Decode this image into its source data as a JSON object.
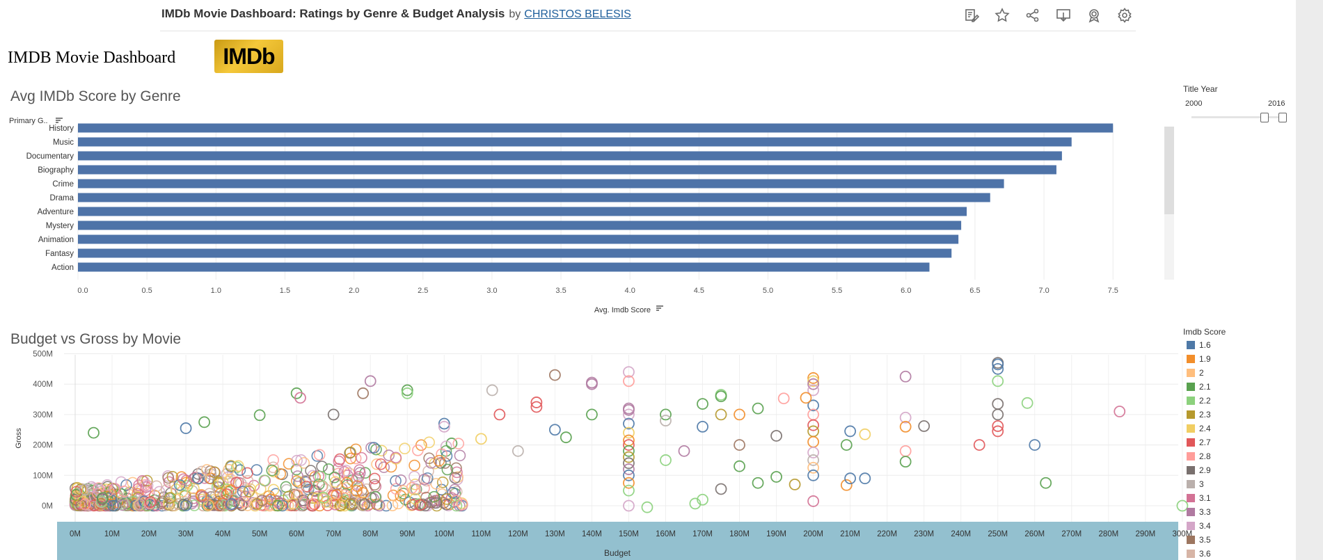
{
  "header": {
    "title": "IMDb Movie Dashboard: Ratings by Genre & Budget Analysis",
    "by": "by",
    "author": "CHRISTOS BELESIS",
    "toolbar_icons": [
      "edit-icon",
      "star-icon",
      "share-icon",
      "download-icon",
      "badge-icon",
      "gear-icon"
    ]
  },
  "dashboard": {
    "heading": "IMDB Movie Dashboard",
    "logo_text": "IMDb"
  },
  "filter": {
    "title": "Title Year",
    "min": "2000",
    "max": "2016"
  },
  "colors": {
    "bar": "#4e73a8",
    "axis_band": "#93c0cf",
    "logo": "#e2b62c"
  },
  "legend": {
    "title": "Imdb Score",
    "items": [
      {
        "label": "1.6",
        "color": "#4e79a7"
      },
      {
        "label": "1.9",
        "color": "#f28e2b"
      },
      {
        "label": "2",
        "color": "#ffbe7d"
      },
      {
        "label": "2.1",
        "color": "#59a14f"
      },
      {
        "label": "2.2",
        "color": "#8cd17d"
      },
      {
        "label": "2.3",
        "color": "#b6992d"
      },
      {
        "label": "2.4",
        "color": "#f1ce63"
      },
      {
        "label": "2.7",
        "color": "#e15759"
      },
      {
        "label": "2.8",
        "color": "#ff9d9a"
      },
      {
        "label": "2.9",
        "color": "#79706e"
      },
      {
        "label": "3",
        "color": "#bab0ac"
      },
      {
        "label": "3.1",
        "color": "#d37295"
      },
      {
        "label": "3.3",
        "color": "#b07aa1"
      },
      {
        "label": "3.4",
        "color": "#d4a6c8"
      },
      {
        "label": "3.5",
        "color": "#9d7660"
      },
      {
        "label": "3.6",
        "color": "#d7b5a6"
      }
    ]
  },
  "chart_data": [
    {
      "type": "bar",
      "orientation": "horizontal",
      "title": "Avg IMDb Score by Genre",
      "ylabel": "Primary G..",
      "xlabel": "Avg. Imdb Score",
      "categories": [
        "History",
        "Music",
        "Documentary",
        "Biography",
        "Crime",
        "Drama",
        "Adventure",
        "Mystery",
        "Animation",
        "Fantasy",
        "Action"
      ],
      "values": [
        7.5,
        7.2,
        7.13,
        7.09,
        6.71,
        6.61,
        6.44,
        6.4,
        6.38,
        6.33,
        6.17
      ],
      "xlim": [
        0,
        7.8
      ],
      "xticks": [
        "0.0",
        "0.5",
        "1.0",
        "1.5",
        "2.0",
        "2.5",
        "3.0",
        "3.5",
        "4.0",
        "4.5",
        "5.0",
        "5.5",
        "6.0",
        "6.5",
        "7.0",
        "7.5"
      ],
      "grid": true
    },
    {
      "type": "scatter",
      "marker": "open-circle",
      "title": "Budget vs Gross by Movie",
      "xlabel": "Budget",
      "ylabel": "Gross",
      "xlim": [
        0,
        300
      ],
      "ylim": [
        -30,
        520
      ],
      "units": "millions USD",
      "xticks": [
        "0M",
        "10M",
        "20M",
        "30M",
        "40M",
        "50M",
        "60M",
        "70M",
        "80M",
        "90M",
        "100M",
        "110M",
        "120M",
        "130M",
        "140M",
        "150M",
        "160M",
        "170M",
        "180M",
        "190M",
        "200M",
        "210M",
        "220M",
        "230M",
        "240M",
        "250M",
        "260M",
        "270M",
        "280M",
        "290M",
        "300M"
      ],
      "yticks": [
        "0M",
        "100M",
        "200M",
        "300M",
        "400M",
        "500M"
      ],
      "grid": true,
      "points": [
        [
          250,
          470,
          9
        ],
        [
          250,
          465,
          0
        ],
        [
          250,
          450,
          0
        ],
        [
          250,
          410,
          4
        ],
        [
          250,
          335,
          9
        ],
        [
          250,
          300,
          9
        ],
        [
          250,
          262,
          7
        ],
        [
          250,
          245,
          7
        ],
        [
          200,
          420,
          1
        ],
        [
          200,
          410,
          6
        ],
        [
          200,
          400,
          12
        ],
        [
          200,
          380,
          13
        ],
        [
          200,
          330,
          0
        ],
        [
          200,
          300,
          8
        ],
        [
          200,
          265,
          7
        ],
        [
          200,
          245,
          5
        ],
        [
          200,
          210,
          1
        ],
        [
          200,
          175,
          13
        ],
        [
          200,
          150,
          10
        ],
        [
          200,
          125,
          2
        ],
        [
          200,
          100,
          0
        ],
        [
          200,
          15,
          11
        ],
        [
          225,
          425,
          12
        ],
        [
          225,
          290,
          13
        ],
        [
          225,
          260,
          1
        ],
        [
          225,
          180,
          8
        ],
        [
          225,
          145,
          3
        ],
        [
          150,
          440,
          13
        ],
        [
          150,
          410,
          8
        ],
        [
          150,
          320,
          12
        ],
        [
          150,
          300,
          13
        ],
        [
          150,
          270,
          0
        ],
        [
          150,
          240,
          6
        ],
        [
          150,
          215,
          1
        ],
        [
          150,
          200,
          7
        ],
        [
          150,
          180,
          3
        ],
        [
          150,
          160,
          5
        ],
        [
          150,
          140,
          9
        ],
        [
          150,
          120,
          12
        ],
        [
          150,
          100,
          0
        ],
        [
          150,
          75,
          1
        ],
        [
          150,
          50,
          4
        ],
        [
          150,
          0,
          13
        ],
        [
          130,
          430,
          14
        ],
        [
          140,
          405,
          12
        ],
        [
          113,
          380,
          10
        ],
        [
          90,
          380,
          3
        ],
        [
          90,
          370,
          4
        ],
        [
          80,
          410,
          12
        ],
        [
          78,
          370,
          14
        ],
        [
          60,
          370,
          3
        ],
        [
          61,
          355,
          11
        ],
        [
          70,
          300,
          9
        ],
        [
          175,
          365,
          4
        ],
        [
          175,
          360,
          3
        ],
        [
          170,
          335,
          3
        ],
        [
          175,
          300,
          5
        ],
        [
          180,
          300,
          1
        ],
        [
          160,
          300,
          3
        ],
        [
          230,
          262,
          9
        ],
        [
          258,
          338,
          4
        ],
        [
          283,
          310,
          11
        ],
        [
          198,
          355,
          1
        ],
        [
          192,
          353,
          8
        ],
        [
          185,
          320,
          3
        ],
        [
          30,
          255,
          0
        ],
        [
          35,
          275,
          3
        ],
        [
          5,
          240,
          3
        ],
        [
          50,
          298,
          3
        ],
        [
          210,
          245,
          0
        ],
        [
          214,
          235,
          6
        ],
        [
          209,
          200,
          3
        ],
        [
          245,
          200,
          7
        ],
        [
          260,
          200,
          0
        ],
        [
          214,
          90,
          0
        ],
        [
          209,
          68,
          1
        ],
        [
          263,
          75,
          3
        ],
        [
          170,
          20,
          4
        ],
        [
          155,
          -5,
          4
        ],
        [
          300,
          0,
          4
        ],
        [
          168,
          7,
          4
        ],
        [
          140,
          400,
          12
        ],
        [
          125,
          340,
          7
        ],
        [
          125,
          325,
          7
        ],
        [
          100,
          270,
          0
        ],
        [
          100,
          260,
          13
        ],
        [
          102,
          205,
          3
        ],
        [
          110,
          220,
          6
        ],
        [
          130,
          250,
          0
        ],
        [
          133,
          225,
          3
        ],
        [
          120,
          180,
          10
        ],
        [
          115,
          300,
          7
        ],
        [
          140,
          300,
          3
        ],
        [
          150,
          315,
          12
        ],
        [
          160,
          280,
          10
        ],
        [
          170,
          260,
          0
        ],
        [
          160,
          150,
          4
        ],
        [
          180,
          130,
          3
        ],
        [
          190,
          95,
          3
        ],
        [
          195,
          70,
          5
        ],
        [
          210,
          90,
          0
        ],
        [
          175,
          55,
          9
        ],
        [
          185,
          75,
          3
        ],
        [
          165,
          180,
          12
        ],
        [
          180,
          200,
          14
        ],
        [
          190,
          230,
          9
        ]
      ]
    }
  ]
}
